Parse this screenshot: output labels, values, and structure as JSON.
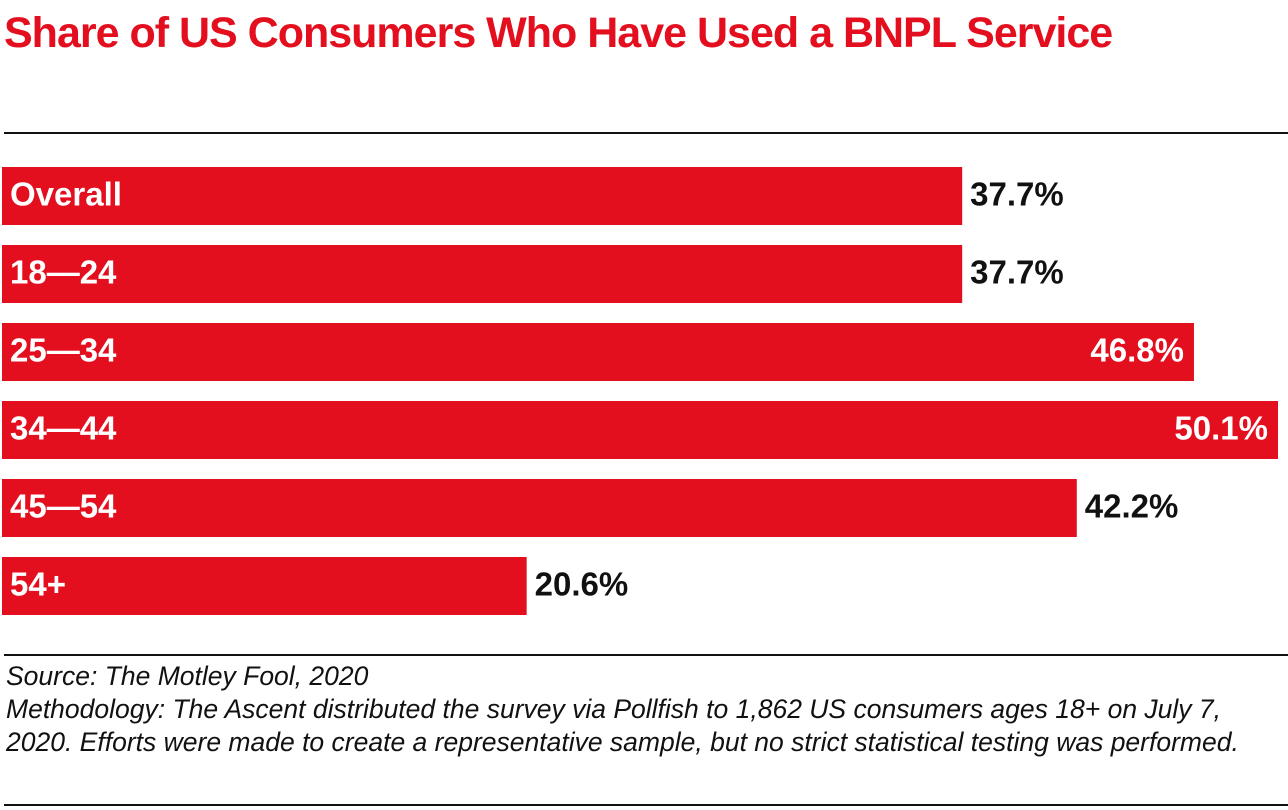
{
  "chart_data": {
    "type": "bar",
    "orientation": "horizontal",
    "title": "Share of US Consumers Who Have Used a BNPL Service",
    "categories": [
      "Overall",
      "18—24",
      "25—34",
      "34—44",
      "45—54",
      "54+"
    ],
    "values": [
      37.7,
      37.7,
      46.8,
      50.1,
      42.2,
      20.6
    ],
    "value_labels": [
      "37.7%",
      "37.7%",
      "46.8%",
      "50.1%",
      "42.2%",
      "20.6%"
    ],
    "color": "#e30f1f",
    "source": "Source: The Motley Fool, 2020",
    "note": "Methodology: The Ascent distributed the survey via Pollfish to 1,862 US consumers ages 18+ on July 7, 2020. Efforts were made to create a representative sample, but no strict statistical testing was performed."
  }
}
